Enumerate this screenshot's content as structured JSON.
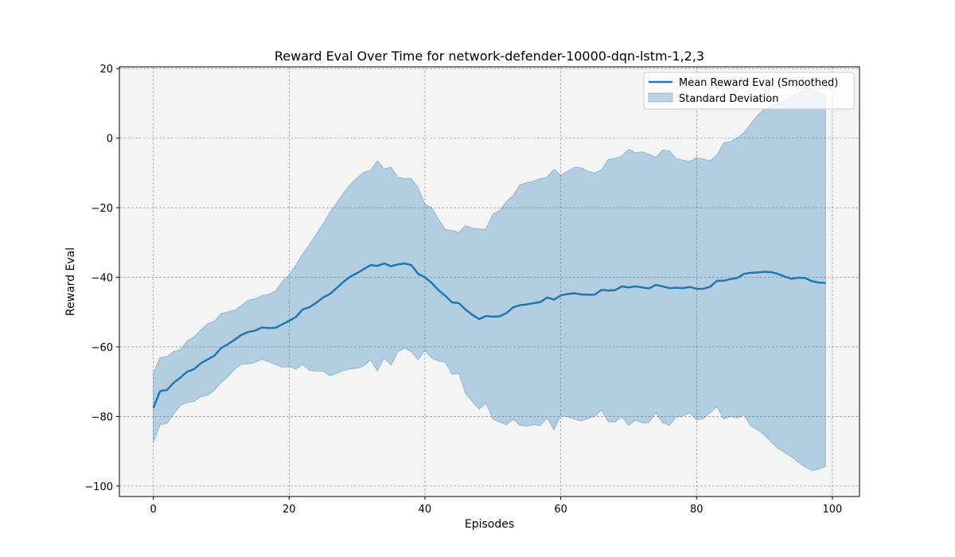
{
  "chart_data": {
    "type": "line",
    "title": "Reward Eval Over Time for network-defender-10000-dqn-lstm-1,2,3",
    "xlabel": "Episodes",
    "ylabel": "Reward Eval",
    "xlim": [
      -5,
      104
    ],
    "ylim": [
      -103,
      20.5
    ],
    "xticks": [
      0,
      20,
      40,
      60,
      80,
      100
    ],
    "yticks": [
      -100,
      -80,
      -60,
      -40,
      -20,
      0,
      20
    ],
    "grid": true,
    "grid_style": "dashed",
    "background_color": "#f4f4f4",
    "legend_position": "top-right",
    "x": [
      0,
      1,
      2,
      3,
      4,
      5,
      6,
      7,
      8,
      9,
      10,
      11,
      12,
      13,
      14,
      15,
      16,
      17,
      18,
      19,
      20,
      21,
      22,
      23,
      24,
      25,
      26,
      27,
      28,
      29,
      30,
      31,
      32,
      33,
      34,
      35,
      36,
      37,
      38,
      39,
      40,
      41,
      42,
      43,
      44,
      45,
      46,
      47,
      48,
      49,
      50,
      51,
      52,
      53,
      54,
      55,
      56,
      57,
      58,
      59,
      60,
      61,
      62,
      63,
      64,
      65,
      66,
      67,
      68,
      69,
      70,
      71,
      72,
      73,
      74,
      75,
      76,
      77,
      78,
      79,
      80,
      81,
      82,
      83,
      84,
      85,
      86,
      87,
      88,
      89,
      90,
      91,
      92,
      93,
      94,
      95,
      96,
      97,
      98,
      99
    ],
    "series": [
      {
        "name": "Mean Reward Eval (Smoothed)",
        "kind": "line",
        "color": "#1f77b4",
        "values": [
          -77.5,
          -72.7,
          -72.4,
          -70.3,
          -68.8,
          -67.1,
          -66.4,
          -64.7,
          -63.6,
          -62.5,
          -60.3,
          -59.2,
          -57.9,
          -56.5,
          -55.7,
          -55.3,
          -54.4,
          -54.6,
          -54.5,
          -53.5,
          -52.5,
          -51.4,
          -49.2,
          -48.6,
          -47.3,
          -45.8,
          -44.8,
          -43.1,
          -41.3,
          -39.8,
          -38.8,
          -37.6,
          -36.5,
          -36.7,
          -36.0,
          -36.8,
          -36.3,
          -36.0,
          -36.5,
          -39.0,
          -40.0,
          -41.6,
          -43.7,
          -45.3,
          -47.2,
          -47.4,
          -49.3,
          -50.8,
          -52.0,
          -51.1,
          -51.3,
          -51.2,
          -50.3,
          -48.6,
          -48.0,
          -47.8,
          -47.4,
          -47.1,
          -45.8,
          -46.4,
          -45.2,
          -44.8,
          -44.6,
          -44.9,
          -45.0,
          -45.0,
          -43.6,
          -43.8,
          -43.7,
          -42.6,
          -42.9,
          -42.6,
          -42.9,
          -43.2,
          -42.2,
          -42.6,
          -43.1,
          -43.0,
          -43.1,
          -42.8,
          -43.3,
          -43.3,
          -42.7,
          -41.0,
          -41.0,
          -40.5,
          -40.2,
          -39.0,
          -38.7,
          -38.6,
          -38.4,
          -38.5,
          -39.0,
          -39.8,
          -40.4,
          -40.1,
          -40.2,
          -41.1,
          -41.5,
          -41.6
        ]
      },
      {
        "name": "Standard Deviation",
        "kind": "band",
        "color": "#1f77b4",
        "opacity": 0.3,
        "upper": [
          -67.5,
          -63.0,
          -62.8,
          -61.3,
          -60.8,
          -58.2,
          -57.1,
          -55.1,
          -53.3,
          -52.6,
          -50.4,
          -49.9,
          -49.4,
          -48.1,
          -46.5,
          -46.2,
          -45.2,
          -44.9,
          -43.9,
          -41.2,
          -39.3,
          -36.4,
          -33.3,
          -30.5,
          -27.6,
          -24.6,
          -21.3,
          -18.6,
          -15.8,
          -13.3,
          -11.4,
          -9.8,
          -9.2,
          -6.5,
          -8.8,
          -8.3,
          -11.2,
          -11.6,
          -11.6,
          -14.3,
          -19.0,
          -20.0,
          -23.3,
          -26.2,
          -26.5,
          -27.1,
          -25.1,
          -25.9,
          -26.1,
          -26.1,
          -21.8,
          -20.8,
          -18.2,
          -16.4,
          -13.4,
          -12.8,
          -12.4,
          -11.6,
          -11.2,
          -8.9,
          -10.7,
          -9.5,
          -8.4,
          -8.5,
          -9.5,
          -10.0,
          -9.1,
          -6.1,
          -5.8,
          -5.1,
          -3.2,
          -4.2,
          -3.9,
          -4.6,
          -5.5,
          -3.4,
          -3.6,
          -5.9,
          -6.3,
          -6.7,
          -5.6,
          -6.0,
          -6.5,
          -4.8,
          -1.3,
          -1.0,
          0.1,
          1.6,
          4.2,
          6.6,
          8.5,
          9.4,
          10.0,
          10.8,
          12.0,
          13.0,
          13.9,
          14.1,
          13.1,
          12.1
        ],
        "lower": [
          -87.5,
          -82.4,
          -82.0,
          -79.3,
          -76.8,
          -76.0,
          -75.7,
          -74.3,
          -73.9,
          -72.4,
          -70.2,
          -68.5,
          -66.4,
          -64.9,
          -64.9,
          -64.4,
          -63.6,
          -64.3,
          -65.1,
          -65.8,
          -65.7,
          -66.4,
          -65.1,
          -66.7,
          -67.0,
          -67.0,
          -68.3,
          -67.6,
          -66.8,
          -66.3,
          -66.2,
          -65.4,
          -63.8,
          -66.9,
          -63.2,
          -65.3,
          -61.4,
          -60.4,
          -61.4,
          -63.7,
          -61.0,
          -63.2,
          -64.1,
          -64.4,
          -67.9,
          -67.7,
          -73.5,
          -75.7,
          -77.9,
          -76.1,
          -80.8,
          -81.6,
          -82.4,
          -80.8,
          -82.6,
          -82.8,
          -82.4,
          -82.6,
          -80.4,
          -83.9,
          -79.7,
          -80.1,
          -80.8,
          -81.3,
          -80.5,
          -80.0,
          -78.1,
          -81.5,
          -81.6,
          -80.1,
          -82.6,
          -81.0,
          -81.9,
          -81.8,
          -78.9,
          -81.8,
          -82.6,
          -80.1,
          -79.9,
          -78.9,
          -81.0,
          -80.6,
          -78.9,
          -77.2,
          -80.7,
          -80.0,
          -80.4,
          -79.6,
          -82.8,
          -83.8,
          -85.3,
          -87.4,
          -89.2,
          -90.4,
          -91.6,
          -93.2,
          -94.5,
          -95.6,
          -95.1,
          -94.4
        ]
      }
    ]
  }
}
